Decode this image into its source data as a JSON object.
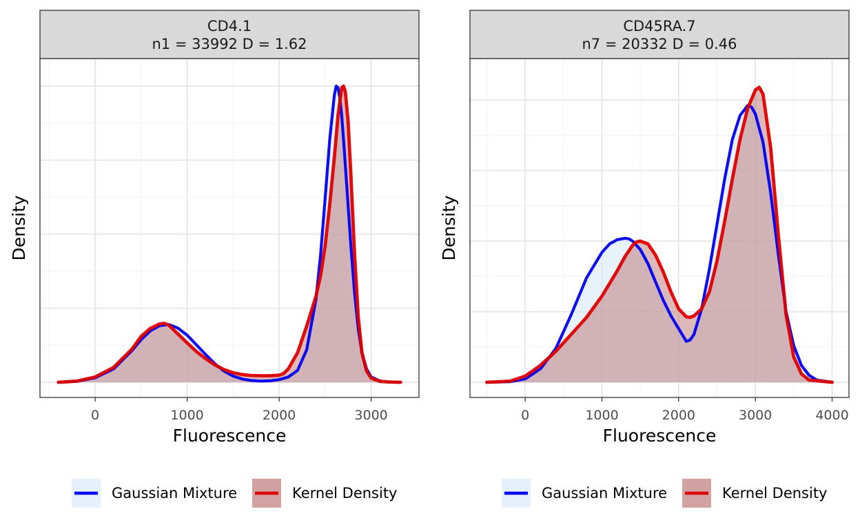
{
  "chart_data": [
    {
      "type": "area",
      "strip_title": "CD4.1",
      "strip_subtitle": "n1 = 33992 D = 1.62",
      "xlabel": "Fluorescence",
      "ylabel": "Density",
      "xlim": [
        -600,
        3520
      ],
      "ylim": [
        0,
        1.0
      ],
      "grid": true,
      "x_ticks": [
        0,
        1000,
        2000,
        3000
      ],
      "x_tick_labels": [
        "0",
        "1000",
        "2000",
        "3000"
      ],
      "legend_position": "bottom",
      "series": [
        {
          "name": "Gaussian Mixture",
          "x": [
            -400,
            -200,
            0,
            200,
            400,
            500,
            600,
            700,
            800,
            900,
            1000,
            1100,
            1200,
            1300,
            1400,
            1500,
            1600,
            1700,
            1800,
            1900,
            2000,
            2100,
            2200,
            2300,
            2400,
            2450,
            2500,
            2550,
            2600,
            2620,
            2640,
            2660,
            2680,
            2700,
            2740,
            2780,
            2820,
            2860,
            2900,
            2950,
            3000,
            3100,
            3200,
            3320
          ],
          "y": [
            0.0,
            0.003,
            0.015,
            0.045,
            0.107,
            0.144,
            0.174,
            0.191,
            0.195,
            0.183,
            0.159,
            0.127,
            0.094,
            0.063,
            0.038,
            0.021,
            0.011,
            0.006,
            0.004,
            0.005,
            0.009,
            0.018,
            0.04,
            0.11,
            0.28,
            0.43,
            0.62,
            0.82,
            0.97,
            1.0,
            0.995,
            0.96,
            0.9,
            0.82,
            0.64,
            0.46,
            0.3,
            0.18,
            0.1,
            0.045,
            0.018,
            0.004,
            0.001,
            0.0
          ]
        },
        {
          "name": "Kernel Density",
          "x": [
            -400,
            -200,
            0,
            200,
            400,
            500,
            600,
            700,
            750,
            800,
            900,
            1000,
            1100,
            1200,
            1300,
            1400,
            1500,
            1600,
            1700,
            1800,
            1900,
            2000,
            2050,
            2100,
            2200,
            2300,
            2400,
            2450,
            2500,
            2550,
            2600,
            2640,
            2680,
            2700,
            2720,
            2750,
            2780,
            2820,
            2860,
            2900,
            2950,
            3000,
            3100,
            3200,
            3320
          ],
          "y": [
            0.0,
            0.004,
            0.018,
            0.05,
            0.112,
            0.155,
            0.182,
            0.197,
            0.199,
            0.193,
            0.163,
            0.133,
            0.104,
            0.08,
            0.059,
            0.043,
            0.032,
            0.026,
            0.023,
            0.022,
            0.022,
            0.024,
            0.03,
            0.045,
            0.1,
            0.19,
            0.29,
            0.36,
            0.46,
            0.6,
            0.76,
            0.9,
            0.995,
            1.0,
            0.98,
            0.88,
            0.7,
            0.43,
            0.22,
            0.1,
            0.038,
            0.014,
            0.003,
            0.001,
            0.0
          ]
        }
      ]
    },
    {
      "type": "area",
      "strip_title": "CD45RA.7",
      "strip_subtitle": "n7 = 20332 D = 0.46",
      "xlabel": "Fluorescence",
      "ylabel": "Density",
      "xlim": [
        -720,
        4220
      ],
      "ylim": [
        0,
        1.0
      ],
      "grid": true,
      "x_ticks": [
        0,
        1000,
        2000,
        3000,
        4000
      ],
      "x_tick_labels": [
        "0",
        "1000",
        "2000",
        "3000",
        "4000"
      ],
      "legend_position": "bottom",
      "series": [
        {
          "name": "Gaussian Mixture",
          "x": [
            -500,
            -200,
            0,
            200,
            400,
            600,
            800,
            1000,
            1100,
            1200,
            1300,
            1350,
            1400,
            1500,
            1600,
            1700,
            1800,
            1900,
            2000,
            2100,
            2150,
            2200,
            2300,
            2400,
            2500,
            2600,
            2700,
            2800,
            2900,
            2950,
            3000,
            3100,
            3200,
            3300,
            3400,
            3500,
            3600,
            3700,
            3800,
            4000
          ],
          "y": [
            0.0,
            0.002,
            0.012,
            0.048,
            0.12,
            0.24,
            0.37,
            0.46,
            0.49,
            0.505,
            0.51,
            0.508,
            0.5,
            0.47,
            0.42,
            0.355,
            0.29,
            0.235,
            0.19,
            0.145,
            0.15,
            0.17,
            0.26,
            0.4,
            0.56,
            0.72,
            0.86,
            0.945,
            0.98,
            0.975,
            0.95,
            0.85,
            0.67,
            0.45,
            0.25,
            0.13,
            0.06,
            0.025,
            0.008,
            0.0
          ]
        },
        {
          "name": "Kernel Density",
          "x": [
            -500,
            -200,
            0,
            200,
            400,
            600,
            800,
            1000,
            1200,
            1300,
            1400,
            1450,
            1500,
            1600,
            1700,
            1800,
            1900,
            2000,
            2100,
            2150,
            2200,
            2300,
            2400,
            2500,
            2600,
            2700,
            2800,
            2900,
            3000,
            3050,
            3100,
            3200,
            3300,
            3400,
            3500,
            3600,
            3700,
            4000
          ],
          "y": [
            0.0,
            0.004,
            0.022,
            0.06,
            0.11,
            0.17,
            0.23,
            0.305,
            0.395,
            0.445,
            0.485,
            0.497,
            0.5,
            0.49,
            0.45,
            0.39,
            0.32,
            0.26,
            0.232,
            0.23,
            0.235,
            0.26,
            0.32,
            0.43,
            0.57,
            0.72,
            0.86,
            0.97,
            1.035,
            1.045,
            1.02,
            0.83,
            0.52,
            0.24,
            0.09,
            0.03,
            0.008,
            0.0
          ]
        }
      ]
    }
  ]
}
